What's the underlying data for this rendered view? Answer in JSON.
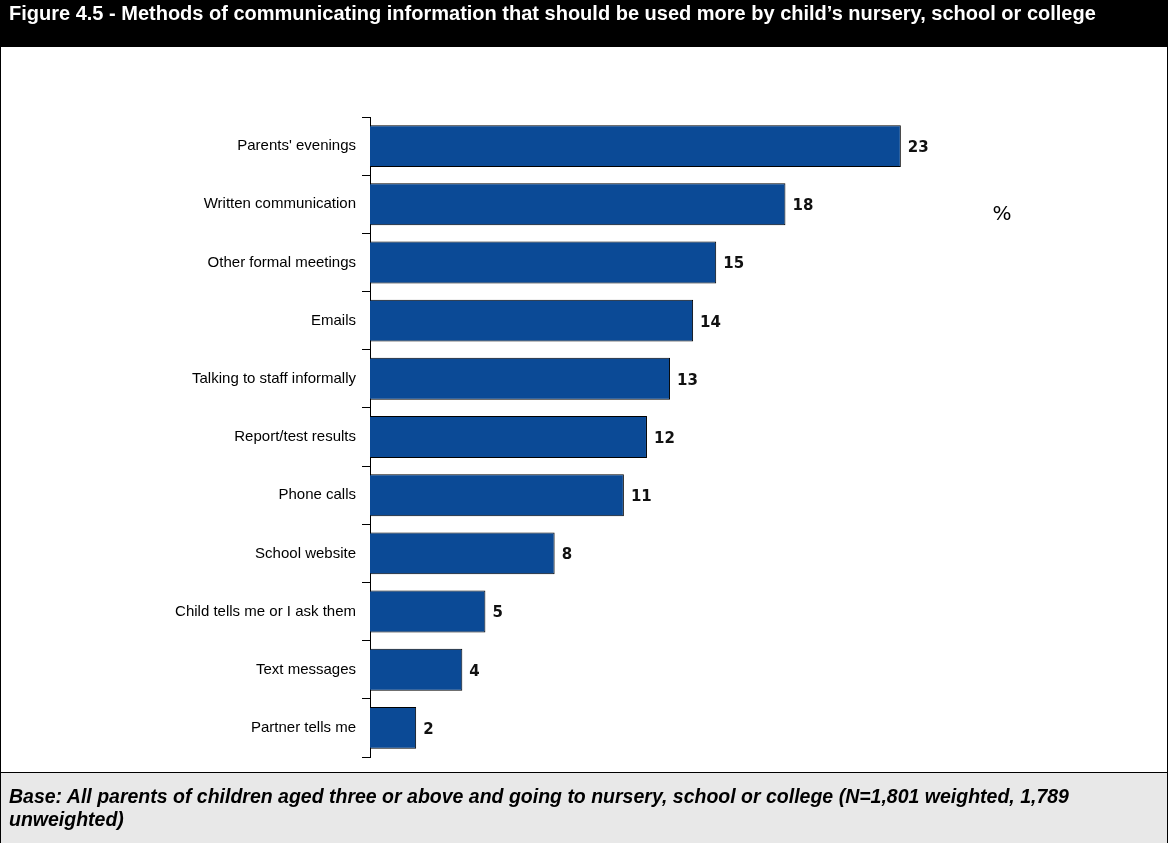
{
  "chart_data": {
    "type": "bar",
    "orientation": "horizontal",
    "title": "Figure 4.5 - Methods of communicating information that should be used more by child’s nursery, school or college",
    "categories": [
      "Parents' evenings",
      "Written communication",
      "Other formal meetings",
      "Emails",
      "Talking to staff informally",
      "Report/test results",
      "Phone calls",
      "School website",
      "Child tells me or I ask them",
      "Text messages",
      "Partner tells me"
    ],
    "values": [
      23,
      18,
      15,
      14,
      13,
      12,
      11,
      8,
      5,
      4,
      2
    ],
    "color": "#0b4a96",
    "data_labels": true,
    "grid": false,
    "legend": false,
    "tick_labels": "y",
    "annotations": [
      "%",
      "Base: All parents of children aged three or above and going to nursery, school or college (N=1,801 weighted, 1,789 unweighted)"
    ]
  }
}
